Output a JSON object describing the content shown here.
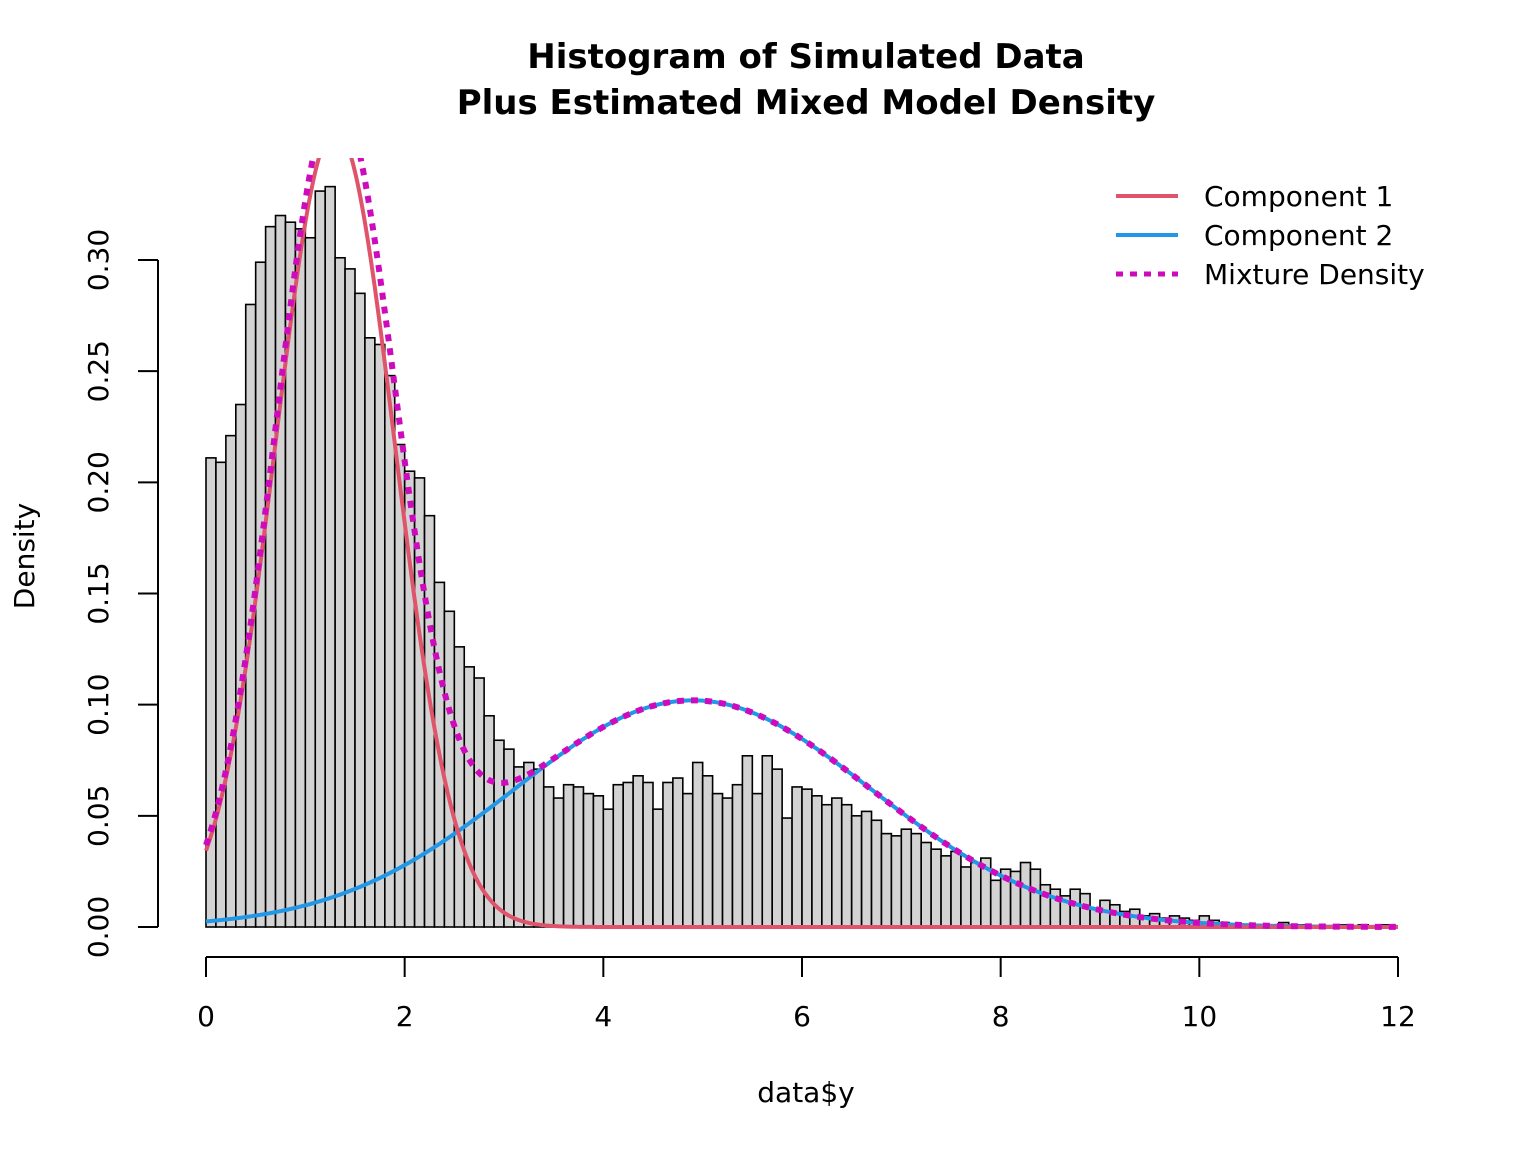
{
  "chart_data": {
    "type": "bar",
    "title": "Histogram of Simulated Data",
    "subtitle": "Plus Estimated Mixed Model Density",
    "xlabel": "data$y",
    "ylabel": "Density",
    "xlim": [
      0,
      12
    ],
    "ylim": [
      0,
      0.3
    ],
    "x_ticks": [
      "0",
      "2",
      "4",
      "6",
      "8",
      "10",
      "12"
    ],
    "y_ticks": [
      "0.00",
      "0.05",
      "0.10",
      "0.15",
      "0.20",
      "0.25",
      "0.30"
    ],
    "bin_width": 0.1,
    "bins_start": 0,
    "bar_fill": "#d3d3d3",
    "legend_position": "top-right",
    "histogram": [
      0.211,
      0.209,
      0.221,
      0.235,
      0.28,
      0.299,
      0.315,
      0.32,
      0.317,
      0.314,
      0.31,
      0.331,
      0.333,
      0.301,
      0.296,
      0.285,
      0.265,
      0.262,
      0.248,
      0.217,
      0.205,
      0.202,
      0.185,
      0.155,
      0.142,
      0.126,
      0.117,
      0.112,
      0.095,
      0.084,
      0.08,
      0.072,
      0.074,
      0.071,
      0.063,
      0.058,
      0.064,
      0.063,
      0.06,
      0.059,
      0.053,
      0.064,
      0.065,
      0.068,
      0.065,
      0.053,
      0.065,
      0.067,
      0.06,
      0.074,
      0.068,
      0.06,
      0.058,
      0.064,
      0.077,
      0.06,
      0.077,
      0.071,
      0.049,
      0.063,
      0.062,
      0.059,
      0.055,
      0.058,
      0.055,
      0.05,
      0.052,
      0.048,
      0.042,
      0.041,
      0.044,
      0.042,
      0.038,
      0.035,
      0.032,
      0.034,
      0.027,
      0.029,
      0.031,
      0.021,
      0.026,
      0.025,
      0.029,
      0.026,
      0.019,
      0.017,
      0.014,
      0.017,
      0.015,
      0.008,
      0.012,
      0.01,
      0.007,
      0.008,
      0.005,
      0.006,
      0.004,
      0.005,
      0.004,
      0.003,
      0.005,
      0.003,
      0.002,
      0.001,
      0.001,
      0.001,
      0.001,
      0.001,
      0.002,
      0.001,
      0.001,
      0.0,
      0.0,
      0.0,
      0.001,
      0.0,
      0.001,
      0.0,
      0.001,
      0.0,
      0.0
    ],
    "series": [
      {
        "name": "Component 1",
        "color": "#df536b",
        "style": "solid",
        "weight": 0.54,
        "mean": 1.3,
        "sd": 0.6
      },
      {
        "name": "Component 2",
        "color": "#2297e6",
        "style": "solid",
        "weight": 0.46,
        "mean": 4.9,
        "sd": 1.8
      },
      {
        "name": "Mixture Density",
        "color": "#cd0bbc",
        "style": "dotted"
      }
    ]
  }
}
